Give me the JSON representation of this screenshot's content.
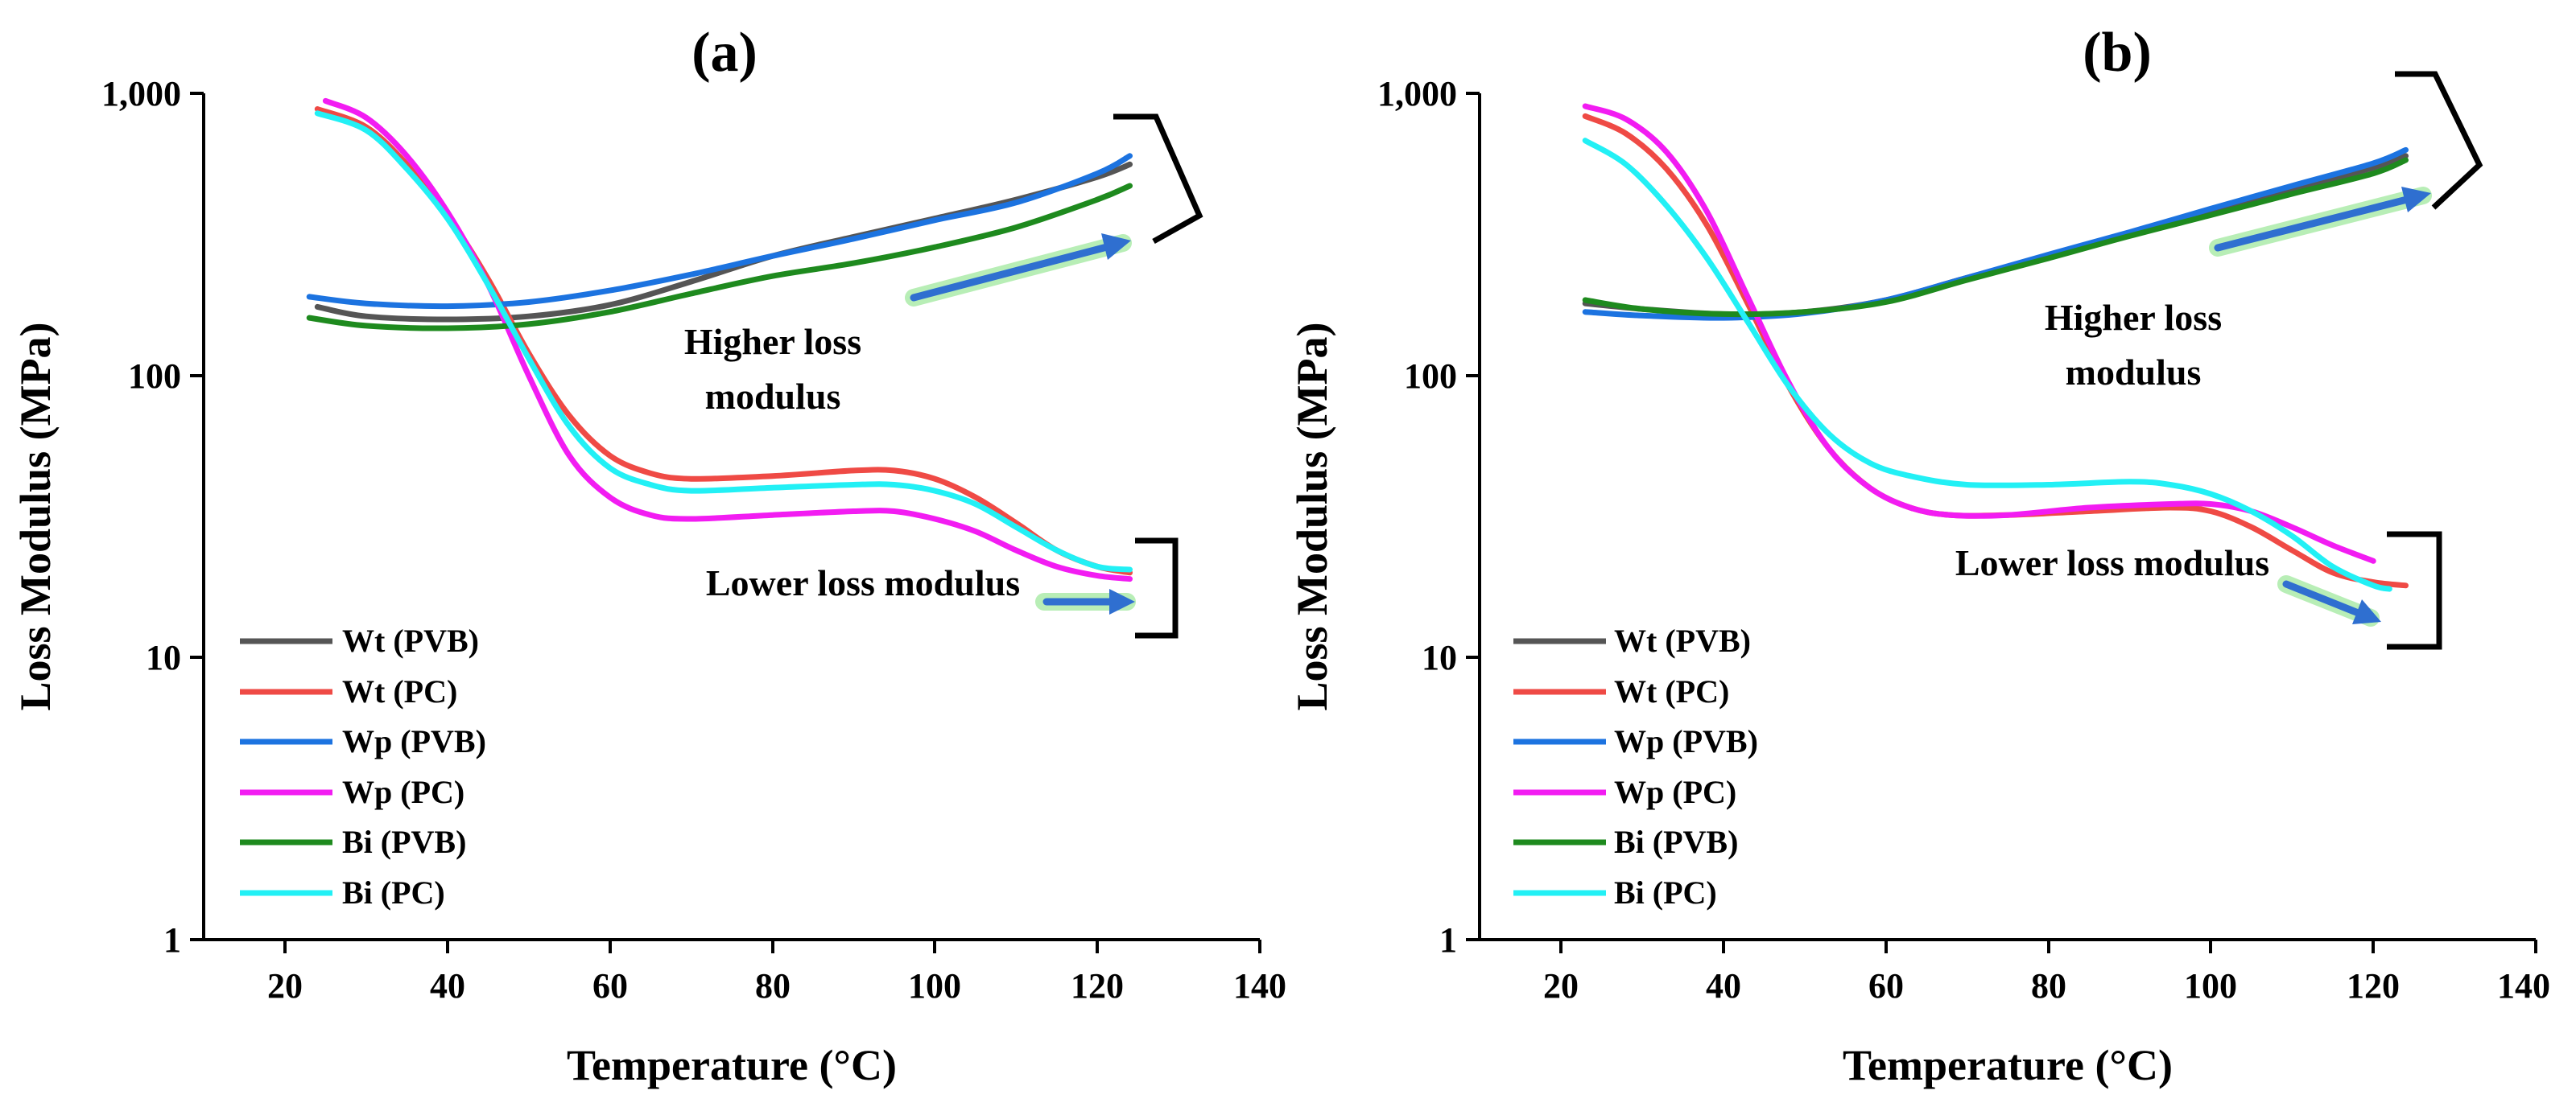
{
  "colors": {
    "Wt (PVB)": "#555555",
    "Wt (PC)": "#ef4a45",
    "Wp (PVB)": "#1c73e0",
    "Wp (PC)": "#f21cf2",
    "Bi (PVB)": "#1e8a1e",
    "Bi (PC)": "#22f0f5"
  },
  "chart_data": [
    {
      "type": "line",
      "title": "(a)",
      "xlabel": "Temperature (°C)",
      "ylabel": "Loss Modulus (MPa)",
      "xlim": [
        10,
        140
      ],
      "ylim": [
        1,
        1000
      ],
      "yscale": "log",
      "x_ticks": [
        20,
        40,
        60,
        80,
        100,
        120,
        140
      ],
      "y_ticks": [
        1,
        10,
        100,
        1000
      ],
      "y_tick_labels": [
        "1",
        "10",
        "100",
        "1,000"
      ],
      "legend_position": "bottom-left",
      "series": [
        {
          "name": "Wt (PVB)",
          "x": [
            24,
            30,
            40,
            50,
            60,
            70,
            80,
            90,
            100,
            110,
            120,
            124
          ],
          "values": [
            175,
            162,
            158,
            162,
            178,
            215,
            265,
            310,
            360,
            420,
            505,
            560
          ]
        },
        {
          "name": "Wt (PC)",
          "x": [
            24,
            30,
            35,
            40,
            45,
            50,
            55,
            60,
            65,
            70,
            80,
            90,
            95,
            100,
            105,
            110,
            115,
            120,
            124
          ],
          "values": [
            880,
            760,
            560,
            370,
            220,
            120,
            72,
            52,
            45,
            43,
            44,
            46,
            46,
            43,
            37,
            30,
            24,
            21,
            20
          ]
        },
        {
          "name": "Wp (PVB)",
          "x": [
            23,
            30,
            40,
            50,
            60,
            70,
            80,
            90,
            100,
            110,
            120,
            124
          ],
          "values": [
            190,
            180,
            176,
            182,
            200,
            228,
            265,
            305,
            355,
            410,
            520,
            600
          ]
        },
        {
          "name": "Wp (PC)",
          "x": [
            25,
            30,
            35,
            40,
            45,
            50,
            55,
            60,
            65,
            70,
            80,
            90,
            95,
            100,
            105,
            110,
            115,
            120,
            124
          ],
          "values": [
            940,
            820,
            600,
            380,
            210,
            100,
            52,
            37,
            32,
            31,
            32,
            33,
            33,
            31,
            28,
            24,
            21,
            19.5,
            19
          ]
        },
        {
          "name": "Bi (PVB)",
          "x": [
            23,
            30,
            40,
            50,
            60,
            70,
            80,
            90,
            100,
            110,
            120,
            124
          ],
          "values": [
            160,
            150,
            147,
            152,
            168,
            195,
            225,
            250,
            285,
            335,
            420,
            470
          ]
        },
        {
          "name": "Bi (PC)",
          "x": [
            24,
            30,
            35,
            40,
            45,
            50,
            55,
            60,
            65,
            70,
            80,
            90,
            95,
            100,
            105,
            110,
            115,
            120,
            124
          ],
          "values": [
            850,
            740,
            540,
            360,
            210,
            115,
            66,
            47,
            41,
            39,
            40,
            41,
            41,
            39,
            35,
            29,
            24,
            21,
            20.5
          ]
        }
      ],
      "annotations": [
        {
          "text_lines": [
            "Higher loss",
            "modulus"
          ]
        },
        {
          "text_lines": [
            "Lower loss modulus"
          ]
        }
      ]
    },
    {
      "type": "line",
      "title": "(b)",
      "xlabel": "Temperature (°C)",
      "ylabel": "Loss Modulus (MPa)",
      "xlim": [
        10,
        140
      ],
      "ylim": [
        1,
        1000
      ],
      "yscale": "log",
      "x_ticks": [
        20,
        40,
        60,
        80,
        100,
        120,
        140
      ],
      "y_ticks": [
        1,
        10,
        100,
        1000
      ],
      "y_tick_labels": [
        "1",
        "10",
        "100",
        "1,000"
      ],
      "legend_position": "bottom-left",
      "series": [
        {
          "name": "Wt (PVB)",
          "x": [
            23,
            30,
            40,
            50,
            60,
            70,
            80,
            90,
            100,
            110,
            120,
            124
          ],
          "values": [
            180,
            172,
            165,
            168,
            185,
            222,
            265,
            318,
            380,
            455,
            545,
            600
          ]
        },
        {
          "name": "Wt (PC)",
          "x": [
            23,
            28,
            33,
            38,
            43,
            48,
            53,
            58,
            63,
            68,
            75,
            85,
            95,
            100,
            105,
            110,
            115,
            120,
            124
          ],
          "values": [
            830,
            720,
            540,
            340,
            180,
            92,
            55,
            40,
            34,
            32,
            32,
            33,
            34,
            33,
            29,
            24,
            20,
            18.5,
            18
          ]
        },
        {
          "name": "Wp (PVB)",
          "x": [
            23,
            30,
            40,
            50,
            60,
            70,
            80,
            90,
            100,
            110,
            120,
            124
          ],
          "values": [
            168,
            163,
            160,
            166,
            185,
            222,
            268,
            322,
            390,
            470,
            565,
            630
          ]
        },
        {
          "name": "Wp (PC)",
          "x": [
            23,
            28,
            33,
            38,
            43,
            48,
            53,
            58,
            63,
            68,
            75,
            85,
            95,
            100,
            105,
            110,
            115,
            120
          ],
          "values": [
            900,
            810,
            620,
            380,
            190,
            95,
            55,
            40,
            34,
            32,
            32,
            34,
            35,
            35,
            33,
            29,
            25,
            22
          ]
        },
        {
          "name": "Bi (PVB)",
          "x": [
            23,
            30,
            40,
            50,
            60,
            70,
            80,
            90,
            100,
            110,
            120,
            124
          ],
          "values": [
            185,
            172,
            165,
            168,
            182,
            218,
            260,
            312,
            370,
            440,
            520,
            580
          ]
        },
        {
          "name": "Bi (PC)",
          "x": [
            23,
            28,
            33,
            38,
            43,
            48,
            53,
            58,
            63,
            70,
            80,
            90,
            95,
            100,
            105,
            110,
            115,
            120,
            122
          ],
          "values": [
            680,
            560,
            400,
            260,
            155,
            92,
            62,
            49,
            44,
            41,
            41,
            42,
            41,
            38,
            33,
            27,
            21,
            18,
            17.5
          ]
        }
      ],
      "annotations": [
        {
          "text_lines": [
            "Higher loss",
            "modulus"
          ]
        },
        {
          "text_lines": [
            "Lower loss modulus"
          ]
        }
      ]
    }
  ]
}
